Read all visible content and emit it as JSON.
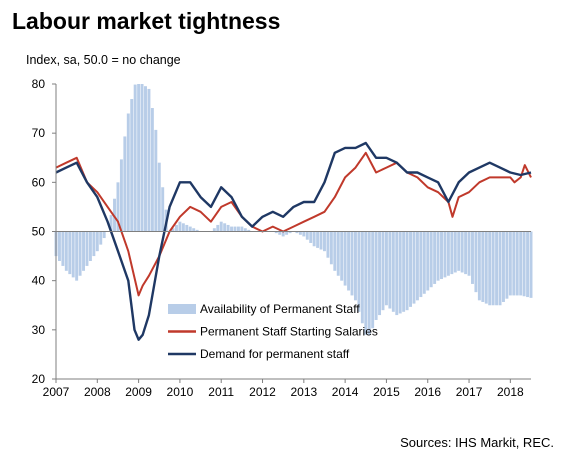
{
  "chart_data": {
    "type": "bar+line",
    "title": "Labour market tightness",
    "subtitle": "Index, sa, 50.0 = no change",
    "source": "Sources: IHS Markit, REC.",
    "xlabel": "",
    "ylabel": "",
    "ylim": [
      20,
      80
    ],
    "yticks": [
      20,
      30,
      40,
      50,
      60,
      70,
      80
    ],
    "xlim": [
      2007,
      2018.5
    ],
    "xticks": [
      2007,
      2008,
      2009,
      2010,
      2011,
      2012,
      2013,
      2014,
      2015,
      2016,
      2017,
      2018
    ],
    "baseline": 50,
    "grid": false,
    "legend_position": "bottom-center",
    "series": [
      {
        "name": "Availability of Permanent Staff",
        "type": "bar",
        "color": "#b8cde8",
        "x": [
          2007.0,
          2007.25,
          2007.5,
          2007.75,
          2008.0,
          2008.25,
          2008.5,
          2008.75,
          2008.92,
          2009.0,
          2009.1,
          2009.25,
          2009.4,
          2009.5,
          2009.6,
          2009.75,
          2010.0,
          2010.25,
          2010.5,
          2010.75,
          2011.0,
          2011.25,
          2011.5,
          2011.75,
          2012.0,
          2012.25,
          2012.5,
          2012.75,
          2013.0,
          2013.25,
          2013.5,
          2013.75,
          2014.0,
          2014.25,
          2014.5,
          2014.6,
          2014.75,
          2015.0,
          2015.25,
          2015.5,
          2015.75,
          2016.0,
          2016.25,
          2016.5,
          2016.75,
          2017.0,
          2017.25,
          2017.5,
          2017.75,
          2018.0,
          2018.25,
          2018.5
        ],
        "y": [
          45,
          42,
          40,
          43,
          46,
          50,
          60,
          74,
          80,
          80,
          80,
          79,
          72,
          64,
          58,
          50,
          52,
          51,
          50,
          50,
          52,
          51,
          51,
          50,
          50,
          50,
          49,
          50,
          49,
          47,
          46,
          42,
          39,
          36,
          29,
          29,
          32,
          35,
          33,
          34,
          36,
          38,
          40,
          41,
          42,
          41,
          36,
          35,
          35,
          37,
          37,
          36.5
        ]
      },
      {
        "name": "Permanent Staff Starting Salaries",
        "type": "line",
        "color": "#c0392b",
        "x": [
          2007.0,
          2007.25,
          2007.5,
          2007.75,
          2008.0,
          2008.25,
          2008.5,
          2008.75,
          2009.0,
          2009.1,
          2009.25,
          2009.5,
          2009.75,
          2010.0,
          2010.25,
          2010.5,
          2010.75,
          2011.0,
          2011.25,
          2011.5,
          2011.75,
          2012.0,
          2012.25,
          2012.5,
          2012.75,
          2013.0,
          2013.25,
          2013.5,
          2013.75,
          2014.0,
          2014.25,
          2014.5,
          2014.75,
          2015.0,
          2015.25,
          2015.5,
          2015.75,
          2016.0,
          2016.25,
          2016.5,
          2016.6,
          2016.75,
          2017.0,
          2017.25,
          2017.5,
          2017.75,
          2018.0,
          2018.1,
          2018.25,
          2018.35,
          2018.5
        ],
        "y": [
          63,
          64,
          65,
          60,
          58,
          55,
          52,
          46,
          37,
          39,
          41,
          45,
          50,
          53,
          55,
          54,
          52,
          55,
          56,
          53,
          51,
          50,
          51,
          50,
          51,
          52,
          53,
          54,
          57,
          61,
          63,
          66,
          62,
          63,
          64,
          62,
          61,
          59,
          58,
          56,
          53,
          57,
          58,
          60,
          61,
          61,
          61,
          60,
          61,
          63.5,
          61
        ]
      },
      {
        "name": "Demand for permanent staff",
        "type": "line",
        "color": "#1f3864",
        "x": [
          2007.0,
          2007.25,
          2007.5,
          2007.75,
          2008.0,
          2008.25,
          2008.5,
          2008.75,
          2008.9,
          2009.0,
          2009.1,
          2009.25,
          2009.5,
          2009.75,
          2010.0,
          2010.25,
          2010.5,
          2010.75,
          2011.0,
          2011.25,
          2011.5,
          2011.75,
          2012.0,
          2012.25,
          2012.5,
          2012.75,
          2013.0,
          2013.25,
          2013.5,
          2013.75,
          2014.0,
          2014.25,
          2014.5,
          2014.75,
          2015.0,
          2015.25,
          2015.5,
          2015.75,
          2016.0,
          2016.25,
          2016.5,
          2016.75,
          2017.0,
          2017.25,
          2017.5,
          2017.75,
          2018.0,
          2018.25,
          2018.5
        ],
        "y": [
          62,
          63,
          64,
          60,
          57,
          52,
          46,
          40,
          30,
          28,
          29,
          33,
          45,
          55,
          60,
          60,
          57,
          55,
          59,
          57,
          53,
          51,
          53,
          54,
          53,
          55,
          56,
          56,
          60,
          66,
          67,
          67,
          68,
          65,
          65,
          64,
          62,
          62,
          61,
          60,
          56,
          60,
          62,
          63,
          64,
          63,
          62,
          61.5,
          62
        ]
      }
    ]
  }
}
